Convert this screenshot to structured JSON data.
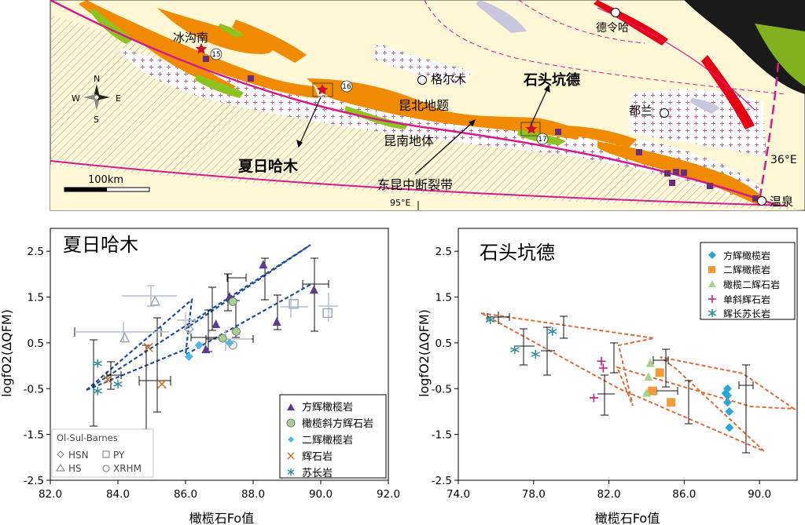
{
  "map": {
    "labels": {
      "bingougou": "冰沟南",
      "geermu": "格尔木",
      "delingha": "德令哈",
      "dulan": "都兰",
      "shitoukengde": "石头坑德",
      "kunbei": "昆北地题",
      "kunnan": "昆南地体",
      "xiarihamu": "夏日哈木",
      "fault": "东昆中断裂带",
      "wenquan": "温泉",
      "lon": "95°E",
      "lat": "36°E",
      "scale": "100km"
    },
    "compass": {
      "n": "N",
      "s": "S",
      "e": "E",
      "w": "W"
    },
    "site_numbers": [
      "15",
      "16",
      "17"
    ],
    "colors": {
      "orange": "#F08A00",
      "green": "#8DC21F",
      "red": "#E60012",
      "magenta": "#D6198C",
      "background": "#FFF7D6"
    }
  },
  "chart_data": [
    {
      "type": "scatter",
      "title": "夏日哈木",
      "xlabel": "橄榄石Fo值",
      "ylabel": "logfO2(ΔQFM)",
      "xlim": [
        82.0,
        92.0
      ],
      "ylim": [
        -2.5,
        3.0
      ],
      "xticks": [
        "82.0",
        "84.0",
        "86.0",
        "88.0",
        "90.0",
        "92.0"
      ],
      "yticks": [
        "2.5",
        "1.5",
        "0.5",
        "-0.5",
        "-1.5",
        "-2.5"
      ],
      "legend": [
        "方辉橄榄岩",
        "橄榄斜方辉石岩",
        "二辉橄榄岩",
        "辉石岩",
        "苏长岩"
      ],
      "legend2_title": "Ol-Sul-Barnes",
      "legend2": [
        "HSN",
        "PY",
        "HS",
        "XRHM"
      ],
      "series": [
        {
          "name": "方辉橄榄岩",
          "marker": "triangle",
          "color": "#5B3C8F",
          "points": [
            [
              86.6,
              0.35
            ],
            [
              86.9,
              0.9
            ],
            [
              87.3,
              1.5
            ],
            [
              88.3,
              2.2
            ],
            [
              88.7,
              0.95
            ],
            [
              89.8,
              1.65
            ]
          ]
        },
        {
          "name": "橄榄斜方辉石岩",
          "marker": "circle",
          "color": "#A8D08D",
          "points": [
            [
              87.1,
              0.6
            ],
            [
              87.5,
              0.75
            ],
            [
              87.4,
              1.4
            ]
          ]
        },
        {
          "name": "二辉橄榄岩",
          "marker": "diamond",
          "color": "#4DB8E8",
          "points": [
            [
              86.1,
              0.2
            ],
            [
              86.4,
              0.45
            ],
            [
              87.3,
              0.5
            ]
          ]
        },
        {
          "name": "辉石岩",
          "marker": "x",
          "color": "#D2691E",
          "points": [
            [
              83.7,
              -0.3
            ],
            [
              84.9,
              0.4
            ],
            [
              85.3,
              -0.4
            ]
          ]
        },
        {
          "name": "苏长岩",
          "marker": "asterisk",
          "color": "#2F8FA0",
          "points": [
            [
              83.4,
              0.05
            ],
            [
              83.4,
              -0.55
            ],
            [
              84.0,
              -0.4
            ]
          ]
        },
        {
          "name": "HSN",
          "marker": "open-diamond",
          "color": "#9AA3B5",
          "points": [
            [
              86.1,
              0.8
            ]
          ]
        },
        {
          "name": "HS",
          "marker": "open-triangle",
          "color": "#9AA3B5",
          "points": [
            [
              84.2,
              0.6
            ],
            [
              85.1,
              1.4
            ]
          ]
        },
        {
          "name": "PY",
          "marker": "open-square",
          "color": "#9AA3B5",
          "points": [
            [
              90.2,
              1.15
            ],
            [
              89.2,
              1.35
            ]
          ]
        },
        {
          "name": "XRHM",
          "marker": "open-circle",
          "color": "#9AA3B5",
          "points": [
            [
              87.4,
              0.45
            ]
          ]
        }
      ]
    },
    {
      "type": "scatter",
      "title": "石头坑德",
      "xlabel": "橄榄石Fo值",
      "ylabel": "logfO2(ΔQFM)",
      "xlim": [
        74.0,
        92.0
      ],
      "ylim": [
        -2.5,
        3.0
      ],
      "xticks": [
        "74.0",
        "78.0",
        "82.0",
        "86.0",
        "90.0"
      ],
      "yticks": [
        "2.5",
        "1.5",
        "0.5",
        "-0.5",
        "-1.5",
        "-2.5"
      ],
      "legend": [
        "方辉橄榄岩",
        "二辉橄榄岩",
        "橄榄二辉石岩",
        "单斜辉石岩",
        "辉长苏长岩"
      ],
      "series": [
        {
          "name": "方辉橄榄岩",
          "marker": "diamond",
          "color": "#2CA6D8",
          "points": [
            [
              88.3,
              -0.5
            ],
            [
              88.3,
              -0.8
            ],
            [
              88.4,
              -1.0
            ],
            [
              88.3,
              -0.65
            ],
            [
              88.4,
              -1.35
            ],
            [
              88.2,
              -0.6
            ]
          ]
        },
        {
          "name": "二辉橄榄岩",
          "marker": "square",
          "color": "#F29B38",
          "points": [
            [
              84.7,
              -0.15
            ],
            [
              84.3,
              -0.55
            ],
            [
              85.3,
              -0.8
            ]
          ]
        },
        {
          "name": "橄榄二辉石岩",
          "marker": "triangle",
          "color": "#A9D18E",
          "points": [
            [
              84.2,
              0.05
            ],
            [
              84.1,
              -0.25
            ],
            [
              84.0,
              -0.6
            ]
          ]
        },
        {
          "name": "单斜辉石岩",
          "marker": "plus",
          "color": "#C71585",
          "points": [
            [
              81.6,
              0.1
            ],
            [
              81.7,
              -0.05
            ],
            [
              81.2,
              -0.7
            ]
          ]
        },
        {
          "name": "辉长苏长岩",
          "marker": "asterisk",
          "color": "#2F8FA0",
          "points": [
            [
              75.7,
              1.0
            ],
            [
              77.0,
              0.35
            ],
            [
              78.1,
              0.25
            ],
            [
              79.0,
              0.75
            ]
          ]
        }
      ]
    }
  ]
}
